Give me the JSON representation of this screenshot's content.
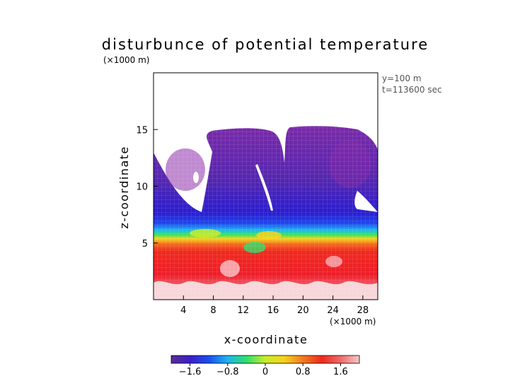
{
  "chart_data": {
    "type": "heatmap",
    "title": "disturbunce of potential temperature",
    "xlabel": "x-coordinate",
    "ylabel": "z-coordinate",
    "x_unit": "(×1000 m)",
    "y_unit": "(×1000 m)",
    "annotations": [
      "y=100 m",
      "t=113600 sec"
    ],
    "xlim": [
      0,
      30
    ],
    "ylim": [
      0,
      20
    ],
    "x_ticks": [
      4,
      8,
      12,
      16,
      20,
      24,
      28
    ],
    "y_ticks": [
      5,
      10,
      15
    ],
    "colorbar": {
      "ticks": [
        -1.6,
        -0.8,
        0,
        0.8,
        1.6
      ],
      "tick_labels": [
        "−1.6",
        "−0.8",
        "0",
        "0.8",
        "1.6"
      ],
      "range": [
        -2.0,
        2.0
      ],
      "colors": [
        "#5a2d96",
        "#3b1fc8",
        "#1a4ef0",
        "#1fb4f0",
        "#2ee06a",
        "#c8ec2a",
        "#f5d21e",
        "#f57a1e",
        "#ef2a1e",
        "#f06a6a",
        "#f5c8c8"
      ]
    },
    "field_layers": [
      {
        "z_range": [
          15.0,
          19.0
        ],
        "value": null,
        "note": "blank (white)"
      },
      {
        "z_range": [
          8.0,
          15.0
        ],
        "value": -1.6
      },
      {
        "z_range": [
          6.5,
          8.0
        ],
        "value": -1.2
      },
      {
        "z_range": [
          6.0,
          6.5
        ],
        "value": -0.5
      },
      {
        "z_range": [
          5.5,
          6.0
        ],
        "value": 0.3
      },
      {
        "z_range": [
          4.0,
          5.5
        ],
        "value": 1.0
      },
      {
        "z_range": [
          1.5,
          4.0
        ],
        "value": 1.6
      },
      {
        "z_range": [
          0.0,
          1.5
        ],
        "value": 2.0
      }
    ]
  }
}
